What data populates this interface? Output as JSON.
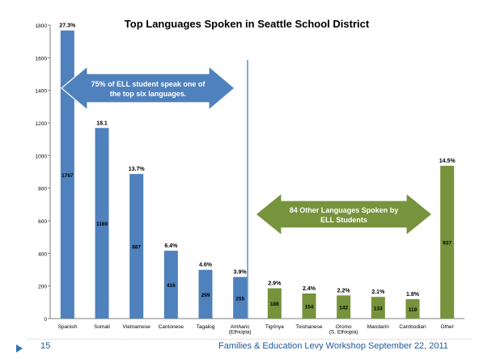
{
  "chart_data": {
    "type": "bar",
    "title": "Top Languages Spoken in Seattle School District",
    "xlabel": "",
    "ylabel": "",
    "ylim": [
      0,
      1800
    ],
    "yticks": [
      "0",
      "200",
      "400",
      "600",
      "800",
      "1000",
      "1200",
      "1400",
      "1600",
      "1800"
    ],
    "grid": false,
    "categories": [
      "Spanish",
      "Somali",
      "Vietnamese",
      "Cantonese",
      "Tagalog",
      "Amharic (Ethiopia)",
      "Tigrinya",
      "Toishanese",
      "Oromo (S. Ethiopia)",
      "Mandarin",
      "Cambodian",
      "Other"
    ],
    "values": [
      1767,
      1169,
      887,
      416,
      299,
      255,
      186,
      154,
      142,
      133,
      119,
      937
    ],
    "value_labels": [
      "1767",
      "1169",
      "887",
      "416",
      "299",
      "255",
      "186",
      "154",
      "142",
      "133",
      "119",
      "937"
    ],
    "percent_labels": [
      "27.3%",
      "18.1",
      "13.7%",
      "6.4%",
      "4.6%",
      "3.9%",
      "2.9%",
      "2.4%",
      "2.2%",
      "2.1%",
      "1.8%",
      "14.5%"
    ],
    "bar_colors": [
      "#4f81bd",
      "#4f81bd",
      "#4f81bd",
      "#4f81bd",
      "#4f81bd",
      "#4f81bd",
      "#77933c",
      "#77933c",
      "#77933c",
      "#77933c",
      "#77933c",
      "#77933c"
    ],
    "annotations": [
      {
        "text": "75% of ELL student speak one of the top six languages.",
        "color": "#4f81bd"
      },
      {
        "text": "84 Other Languages Spoken by  ELL Students",
        "color": "#77933c"
      }
    ]
  },
  "footer": {
    "slide_number": "15",
    "text": "Families & Education Levy Workshop    September 22, 2011"
  }
}
